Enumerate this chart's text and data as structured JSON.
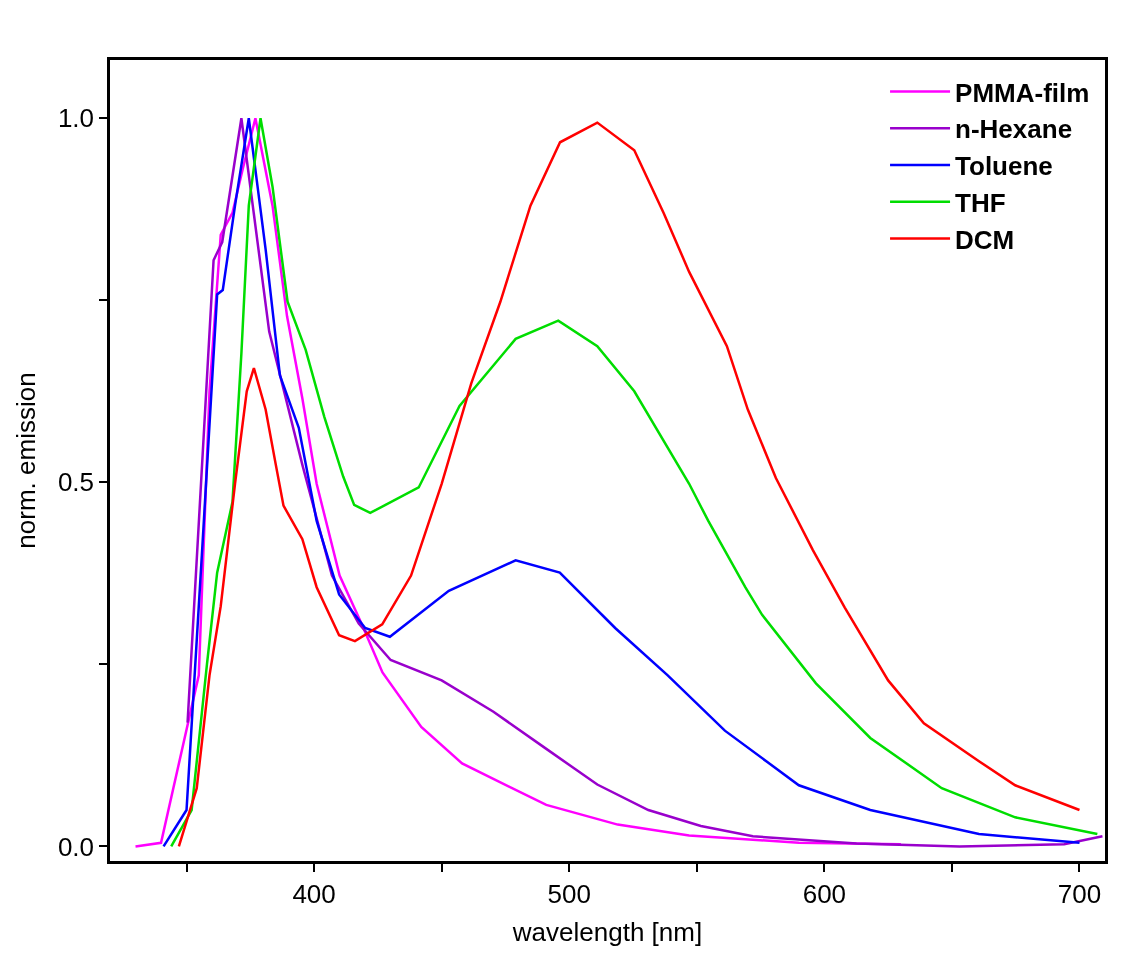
{
  "chart_data": {
    "type": "line",
    "xlabel": "wavelength [nm]",
    "ylabel": "norm. emission",
    "xlim": [
      320,
      710
    ],
    "ylim": [
      -0.02,
      1.08
    ],
    "xticks": [
      {
        "value": 350,
        "label": null
      },
      400,
      {
        "value": 450,
        "label": null
      },
      500,
      {
        "value": 550,
        "label": null
      },
      600,
      {
        "value": 650,
        "label": null
      },
      700
    ],
    "yticks": [
      {
        "value": 0,
        "label": "0.0"
      },
      {
        "value": 0.25,
        "label": null
      },
      0.5,
      {
        "value": 0.75,
        "label": null
      },
      {
        "value": 1,
        "label": "1.0"
      }
    ],
    "legend": "top right",
    "marker": "none",
    "line_style": "solid",
    "series": [
      {
        "name": "PMMA-film",
        "color": "#ff00ff",
        "x": [
          330,
          340,
          354.8,
          359,
          363.4,
          368,
          372,
          377,
          383.7,
          389.4,
          395.4,
          401,
          410,
          418.7,
          426.8,
          442,
          458,
          491,
          519,
          547,
          590,
          630
        ],
        "values": [
          0,
          0.005,
          0.235,
          0.625,
          0.84,
          0.87,
          0.93,
          1.0,
          0.88,
          0.728,
          0.615,
          0.498,
          0.372,
          0.305,
          0.239,
          0.164,
          0.114,
          0.057,
          0.03,
          0.015,
          0.005,
          0.003
        ]
      },
      {
        "name": "n-Hexane",
        "color": "#9900cc",
        "x": [
          350.4,
          360.6,
          364,
          371.5,
          382.4,
          395.4,
          407,
          417.5,
          430,
          450,
          470.3,
          490.6,
          511,
          531,
          551.6,
          572,
          612.6,
          653,
          694,
          709
        ],
        "values": [
          0.17,
          0.805,
          0.83,
          1.0,
          0.707,
          0.524,
          0.372,
          0.306,
          0.256,
          0.228,
          0.185,
          0.135,
          0.085,
          0.05,
          0.028,
          0.014,
          0.004,
          0,
          0.003,
          0.014
        ]
      },
      {
        "name": "Toluene",
        "color": "#0000ff",
        "x": [
          341,
          350,
          356,
          362,
          364.2,
          369,
          374.4,
          381,
          386.6,
          394,
          401,
          409.8,
          420,
          429.7,
          452.8,
          479,
          496.3,
          518,
          538.6,
          561,
          590,
          618,
          660.6,
          700
        ],
        "values": [
          0,
          0.05,
          0.4,
          0.758,
          0.764,
          0.88,
          1.0,
          0.82,
          0.647,
          0.575,
          0.447,
          0.346,
          0.3,
          0.288,
          0.351,
          0.393,
          0.376,
          0.3,
          0.235,
          0.159,
          0.084,
          0.05,
          0.017,
          0.005
        ]
      },
      {
        "name": "THF",
        "color": "#00dd00",
        "x": [
          344,
          352,
          358,
          362,
          368,
          371.5,
          374.4,
          379,
          383.7,
          389.6,
          396.7,
          404,
          411.4,
          415.7,
          422,
          441,
          457,
          479,
          495.7,
          511,
          525.5,
          547,
          554.5,
          569,
          575.6,
          596.7,
          618,
          646,
          674.8,
          707
        ],
        "values": [
          0,
          0.05,
          0.25,
          0.376,
          0.473,
          0.677,
          0.88,
          1.0,
          0.906,
          0.748,
          0.682,
          0.59,
          0.508,
          0.469,
          0.458,
          0.493,
          0.605,
          0.697,
          0.722,
          0.687,
          0.625,
          0.498,
          0.447,
          0.356,
          0.318,
          0.224,
          0.149,
          0.08,
          0.04,
          0.017
        ]
      },
      {
        "name": "DCM",
        "color": "#ff0000",
        "x": [
          347,
          354,
          359,
          363.4,
          369,
          373.6,
          376.4,
          381,
          385,
          388,
          395.4,
          401,
          409.8,
          416,
          426.7,
          438,
          450,
          461.6,
          473,
          484.8,
          496.4,
          511,
          525.5,
          537,
          547,
          561.8,
          570,
          581,
          595.5,
          608,
          625,
          639,
          660.6,
          674.8,
          700
        ],
        "values": [
          0,
          0.08,
          0.235,
          0.33,
          0.498,
          0.625,
          0.657,
          0.6,
          0.524,
          0.468,
          0.422,
          0.356,
          0.29,
          0.282,
          0.305,
          0.372,
          0.498,
          0.636,
          0.748,
          0.88,
          0.967,
          0.994,
          0.956,
          0.87,
          0.789,
          0.687,
          0.6,
          0.506,
          0.407,
          0.328,
          0.228,
          0.169,
          0.117,
          0.084,
          0.05
        ]
      }
    ]
  }
}
